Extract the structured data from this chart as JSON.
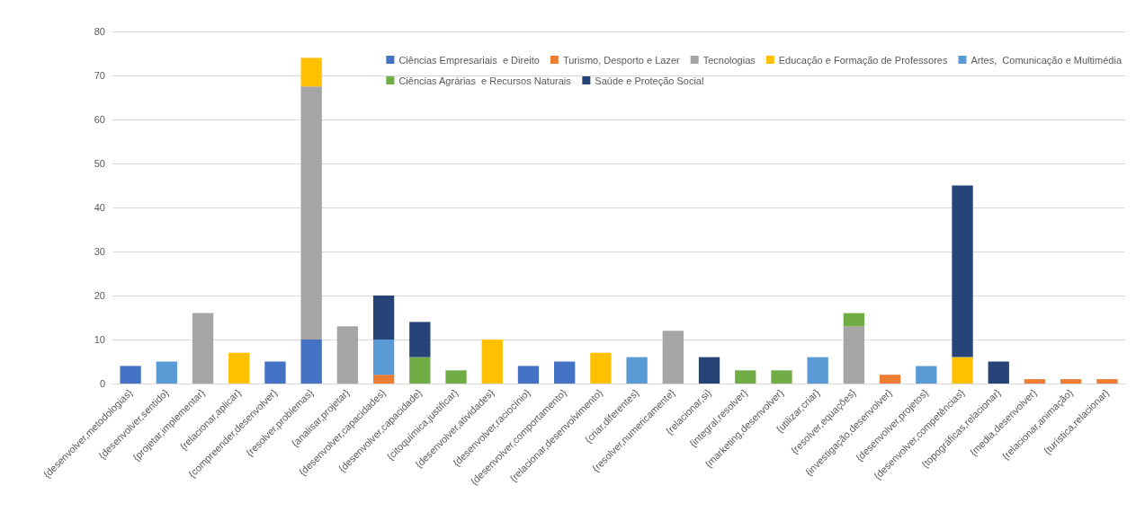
{
  "chart_data": {
    "type": "bar",
    "stacked": true,
    "legend": "top right",
    "grid": "y",
    "categories": [
      "{desenvolver,metodologias}",
      "{desenvolver,sentido}",
      "{projetar,implementar}",
      "{relacionar,aplicar}",
      "{compreender,desenvolver}",
      "{resolver,problemas}",
      "{analisar,projetar}",
      "{desenvolver,capacidades}",
      "{desenvolver,capacidade}",
      "{citoquímica,justificar}",
      "{desenvolver,atividades}",
      "{desenvolver,raciocínio}",
      "{desenvolver,comportamento}",
      "{relacionar,desenvolvimento}",
      "{criar,diferentes}",
      "{resolver,numericamente}",
      "{relacionar,si}",
      "{integral,resolver}",
      "{marketing,desenvolver}",
      "{utilizar,criar}",
      "{resolver,equações}",
      "{investigação,desenvolver}",
      "{desenvolver,projetos}",
      "{desenvolver,competências}",
      "{topográficas,relacionar}",
      "{media,desenvolver}",
      "{relacionar,animação}",
      "{turística,relacionar}"
    ],
    "series": [
      {
        "name": "Ciências Empresariais  e Direito",
        "color": "#4472c4",
        "values": [
          4,
          null,
          null,
          null,
          5,
          10,
          null,
          null,
          null,
          null,
          null,
          4,
          5,
          null,
          null,
          null,
          null,
          null,
          null,
          null,
          null,
          null,
          null,
          null,
          null,
          null,
          null,
          null
        ]
      },
      {
        "name": "Turismo, Desporto e Lazer",
        "color": "#ed7d31",
        "values": [
          null,
          null,
          null,
          null,
          null,
          null,
          null,
          2,
          null,
          null,
          null,
          null,
          null,
          null,
          null,
          null,
          null,
          null,
          null,
          null,
          null,
          2,
          null,
          null,
          null,
          1,
          1,
          1
        ]
      },
      {
        "name": "Tecnologias",
        "color": "#a5a5a5",
        "values": [
          null,
          null,
          16,
          null,
          null,
          57.5,
          13,
          null,
          null,
          null,
          null,
          null,
          null,
          null,
          null,
          12,
          null,
          null,
          null,
          null,
          13,
          null,
          null,
          null,
          null,
          null,
          null,
          null
        ]
      },
      {
        "name": "Educação e Formação de Professores",
        "color": "#ffc000",
        "values": [
          null,
          null,
          null,
          7,
          null,
          6.5,
          null,
          null,
          null,
          null,
          10,
          null,
          null,
          7,
          null,
          null,
          null,
          null,
          null,
          null,
          null,
          null,
          null,
          6,
          null,
          null,
          null,
          null
        ]
      },
      {
        "name": "Artes,  Comunicação e Multimédia",
        "color": "#5b9bd5",
        "values": [
          null,
          5,
          null,
          null,
          null,
          null,
          null,
          8,
          null,
          null,
          null,
          null,
          null,
          null,
          6,
          null,
          null,
          null,
          null,
          6,
          null,
          null,
          4,
          null,
          null,
          null,
          null,
          null
        ]
      },
      {
        "name": "Ciências Agrárias  e Recursos Naturais",
        "color": "#70ad47",
        "values": [
          null,
          null,
          null,
          null,
          null,
          null,
          null,
          null,
          6,
          3,
          null,
          null,
          null,
          null,
          null,
          null,
          null,
          3,
          3,
          null,
          3,
          null,
          null,
          null,
          null,
          null,
          null,
          null
        ]
      },
      {
        "name": "Saúde e Proteção Social",
        "color": "#264478",
        "values": [
          null,
          null,
          null,
          null,
          null,
          null,
          null,
          10,
          8,
          null,
          null,
          null,
          null,
          null,
          null,
          null,
          6,
          null,
          null,
          null,
          null,
          null,
          null,
          39,
          5,
          null,
          null,
          null
        ]
      }
    ],
    "ylim": [
      0,
      80
    ],
    "yticks": [
      0,
      10,
      20,
      30,
      40,
      50,
      60,
      70,
      80
    ]
  }
}
